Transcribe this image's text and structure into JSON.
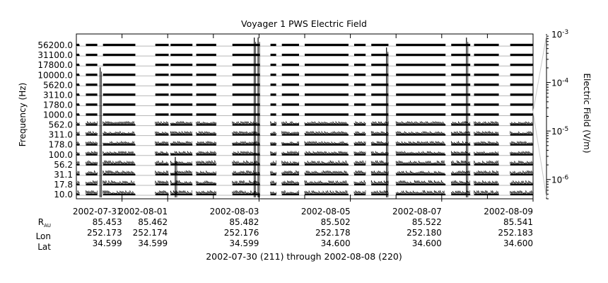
{
  "chart_data": {
    "type": "line",
    "title": "Voyager 1 PWS Electric Field",
    "ylabel": "Frequency (Hz)",
    "colorbar_label": "Electric Field (V/m)",
    "y_tick_labels": [
      "56200.0",
      "31100.0",
      "17800.0",
      "10000.0",
      "5620.0",
      "3110.0",
      "1780.0",
      "1000.0",
      "562.0",
      "311.0",
      "178.0",
      "100.0",
      "56.2",
      "31.1",
      "17.8",
      "10.0"
    ],
    "channels_hz": [
      10.0,
      17.8,
      31.1,
      56.2,
      100.0,
      178.0,
      311.0,
      562.0,
      1000.0,
      1780.0,
      3110.0,
      5620.0,
      10000.0,
      17800.0,
      31100.0,
      56200.0
    ],
    "x_range": [
      "2002-07-30",
      "2002-08-09"
    ],
    "x_ticks": [
      {
        "label": "2002-07-31",
        "date": "2002-07-31"
      },
      {
        "label": "2002-08-01",
        "date": "2002-08-01"
      },
      {
        "label": "2002-08-03",
        "date": "2002-08-03"
      },
      {
        "label": "2002-08-05",
        "date": "2002-08-05"
      },
      {
        "label": "2002-08-07",
        "date": "2002-08-07"
      },
      {
        "label": "2002-08-09",
        "date": "2002-08-09"
      }
    ],
    "colorbar_ticks": [
      {
        "base": "10",
        "exp": "-3",
        "value": 0.001
      },
      {
        "base": "10",
        "exp": "-4",
        "value": 0.0001
      },
      {
        "base": "10",
        "exp": "-5",
        "value": 1e-05
      },
      {
        "base": "10",
        "exp": "-6",
        "value": 1e-06
      }
    ],
    "colorbar_scale": "log",
    "colorbar_range": [
      4e-07,
      0.001
    ],
    "data_intervals": [
      [
        "2002-07-30T00:00",
        "2002-07-30T01:30"
      ],
      [
        "2002-07-30T05:00",
        "2002-07-30T11:00"
      ],
      [
        "2002-07-30T14:00",
        "2002-07-31T07:00"
      ],
      [
        "2002-07-31T17:30",
        "2002-08-01T00:30"
      ],
      [
        "2002-08-01T01:30",
        "2002-08-01T13:00"
      ],
      [
        "2002-08-01T15:00",
        "2002-08-02T01:30"
      ],
      [
        "2002-08-02T10:00",
        "2002-08-03T00:30"
      ],
      [
        "2002-08-03T06:00",
        "2002-08-03T09:00"
      ],
      [
        "2002-08-03T12:00",
        "2002-08-03T21:00"
      ],
      [
        "2002-08-04T00:00",
        "2002-08-04T23:00"
      ],
      [
        "2002-08-05T02:00",
        "2002-08-05T08:00"
      ],
      [
        "2002-08-05T11:00",
        "2002-08-05T20:00"
      ],
      [
        "2002-08-06T00:00",
        "2002-08-07T02:00"
      ],
      [
        "2002-08-07T05:00",
        "2002-08-07T15:00"
      ],
      [
        "2002-08-07T17:00",
        "2002-08-08T06:00"
      ],
      [
        "2002-08-08T12:00",
        "2002-08-09T00:00"
      ]
    ],
    "bursts": [
      {
        "date": "2002-07-30T12:30",
        "top_channel": 12
      },
      {
        "date": "2002-08-01T04:00",
        "top_channel": 3
      },
      {
        "date": "2002-08-02T21:30",
        "top_channel": 15
      },
      {
        "date": "2002-08-02T23:30",
        "top_channel": 15
      },
      {
        "date": "2002-08-05T19:00",
        "top_channel": 14
      },
      {
        "date": "2002-08-07T13:00",
        "top_channel": 15
      }
    ],
    "grid": true
  },
  "ephemeris": {
    "labels": {
      "rau_main": "R",
      "rau_sub": "AU",
      "lon": "Lon",
      "lat": "Lat"
    },
    "columns": [
      {
        "rau": "85.453",
        "lon": "252.173",
        "lat": "34.599"
      },
      {
        "rau": "85.462",
        "lon": "252.174",
        "lat": "34.599"
      },
      {
        "rau": "85.482",
        "lon": "252.176",
        "lat": "34.599"
      },
      {
        "rau": "85.502",
        "lon": "252.178",
        "lat": "34.600"
      },
      {
        "rau": "85.522",
        "lon": "252.180",
        "lat": "34.600"
      },
      {
        "rau": "85.541",
        "lon": "252.183",
        "lat": "34.600"
      }
    ]
  },
  "caption": "2002-07-30 (211) through 2002-08-08 (220)"
}
